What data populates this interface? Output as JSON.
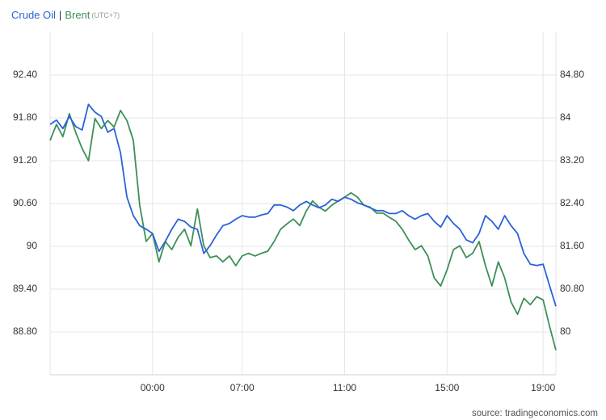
{
  "chart_data": {
    "type": "line",
    "separator": "|",
    "timezone": "(UTC+7)",
    "source": "source: tradingeconomics.com",
    "categories": [
      null,
      null,
      null,
      null,
      null,
      null,
      null,
      null,
      null,
      null,
      null,
      null,
      null,
      null,
      null,
      null,
      "00:00",
      null,
      null,
      null,
      null,
      null,
      null,
      null,
      null,
      null,
      null,
      null,
      null,
      null,
      "07:00",
      null,
      null,
      null,
      null,
      null,
      null,
      null,
      null,
      null,
      null,
      null,
      null,
      null,
      null,
      null,
      "11:00",
      null,
      null,
      null,
      null,
      null,
      null,
      null,
      null,
      null,
      null,
      null,
      null,
      null,
      null,
      null,
      "15:00",
      null,
      null,
      null,
      null,
      null,
      null,
      null,
      null,
      null,
      null,
      null,
      null,
      null,
      null,
      "19:00",
      null,
      null
    ],
    "series": [
      {
        "name": "Crude Oil",
        "color": "#2962d9",
        "axis": "y",
        "values": [
          91.71,
          91.77,
          91.65,
          91.82,
          91.68,
          91.63,
          91.99,
          91.88,
          91.82,
          91.6,
          91.65,
          91.31,
          90.69,
          90.43,
          90.29,
          90.24,
          90.18,
          89.93,
          90.07,
          90.24,
          90.38,
          90.35,
          90.27,
          90.24,
          89.9,
          90.01,
          90.16,
          90.29,
          90.32,
          90.38,
          90.43,
          90.41,
          90.41,
          90.44,
          90.46,
          90.58,
          90.58,
          90.55,
          90.5,
          90.58,
          90.63,
          90.58,
          90.54,
          90.58,
          90.66,
          90.63,
          90.69,
          90.66,
          90.61,
          90.58,
          90.54,
          90.5,
          90.5,
          90.46,
          90.46,
          90.5,
          90.43,
          90.38,
          90.43,
          90.46,
          90.35,
          90.27,
          90.43,
          90.32,
          90.24,
          90.09,
          90.05,
          90.18,
          90.43,
          90.35,
          90.24,
          90.43,
          90.29,
          90.18,
          89.9,
          89.75,
          89.73,
          89.75,
          89.45,
          89.16
        ]
      },
      {
        "name": "Brent",
        "color": "#3d8f57",
        "axis": "y2",
        "values": [
          83.58,
          83.88,
          83.65,
          84.08,
          83.73,
          83.43,
          83.2,
          83.99,
          83.8,
          83.95,
          83.83,
          84.14,
          83.95,
          83.58,
          82.37,
          81.69,
          81.84,
          81.31,
          81.69,
          81.54,
          81.77,
          81.92,
          81.61,
          82.3,
          81.61,
          81.39,
          81.42,
          81.31,
          81.42,
          81.24,
          81.42,
          81.47,
          81.42,
          81.47,
          81.51,
          81.69,
          81.92,
          82.02,
          82.11,
          81.99,
          82.26,
          82.45,
          82.33,
          82.26,
          82.37,
          82.45,
          82.52,
          82.6,
          82.52,
          82.37,
          82.33,
          82.22,
          82.22,
          82.14,
          82.07,
          81.92,
          81.72,
          81.54,
          81.61,
          81.42,
          81.01,
          80.86,
          81.16,
          81.54,
          81.61,
          81.39,
          81.47,
          81.69,
          81.24,
          80.86,
          81.31,
          81.01,
          80.56,
          80.33,
          80.63,
          80.51,
          80.66,
          80.6,
          80.11,
          79.66
        ]
      }
    ],
    "ylim": [
      88.2,
      93.0
    ],
    "yticks": [
      {
        "value": 88.8,
        "label": "88.80"
      },
      {
        "value": 89.4,
        "label": "89.40"
      },
      90,
      {
        "value": 90.6,
        "label": "90.60"
      },
      {
        "value": 91.2,
        "label": "91.20"
      },
      {
        "value": 91.8,
        "label": "91.80"
      },
      {
        "value": 92.4,
        "label": "92.40"
      }
    ],
    "y2lim": [
      79.2,
      85.6
    ],
    "y2ticks": [
      80,
      {
        "value": 80.8,
        "label": "80.80"
      },
      {
        "value": 81.6,
        "label": "81.60"
      },
      {
        "value": 82.4,
        "label": "82.40"
      },
      {
        "value": 83.2,
        "label": "83.20"
      },
      84,
      {
        "value": 84.8,
        "label": "84.80"
      }
    ],
    "grid": true
  }
}
